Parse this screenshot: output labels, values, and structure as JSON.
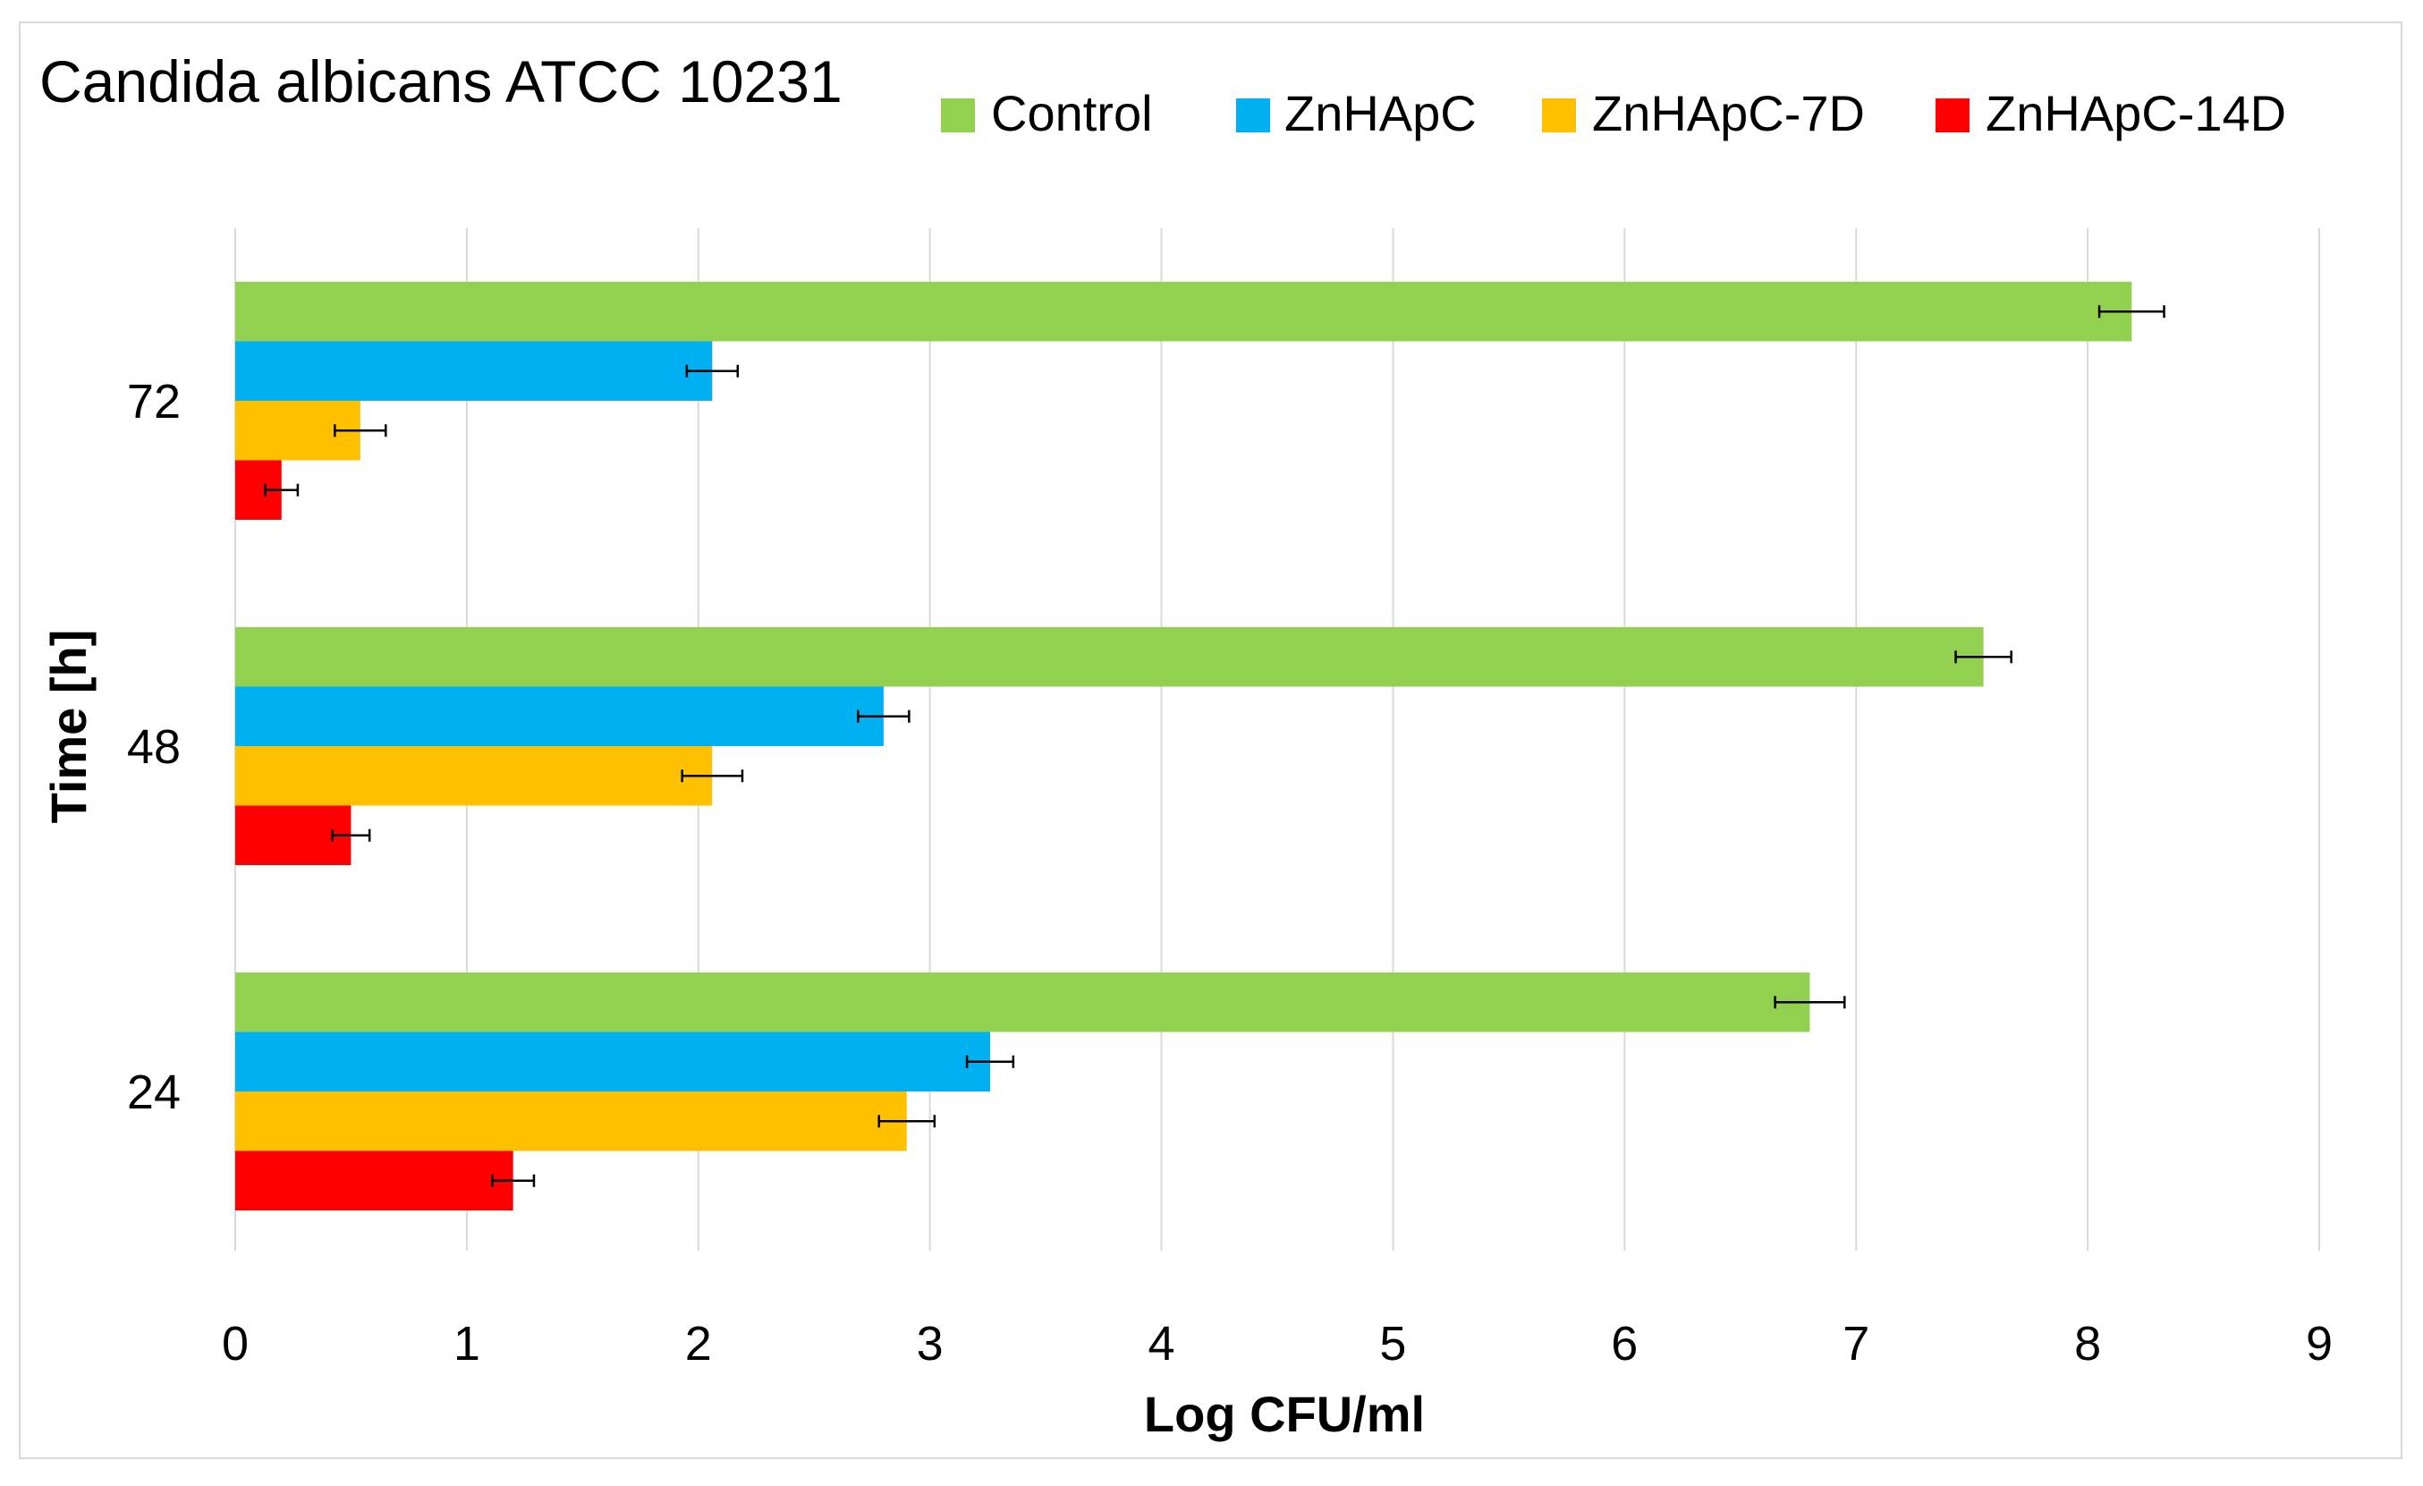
{
  "chart_data": {
    "type": "bar",
    "orientation": "horizontal",
    "title": "Candida albicans ATCC 10231",
    "xlabel": "Log CFU/ml",
    "ylabel": "Time [h]",
    "xlim": [
      0,
      9
    ],
    "x_ticks": [
      "0",
      "1",
      "2",
      "3",
      "4",
      "5",
      "6",
      "7",
      "8",
      "9"
    ],
    "categories": [
      "72",
      "48",
      "24"
    ],
    "grid": true,
    "legend_position": "top",
    "series": [
      {
        "name": "Control",
        "color": "#92d050",
        "values": [
          8.19,
          7.55,
          6.8
        ],
        "errors": [
          0.14,
          0.12,
          0.15
        ]
      },
      {
        "name": "ZnHApC",
        "color": "#00b0f0",
        "values": [
          2.06,
          2.8,
          3.26
        ],
        "errors": [
          0.11,
          0.11,
          0.1
        ]
      },
      {
        "name": "ZnHApC-7D",
        "color": "#ffc000",
        "values": [
          0.54,
          2.06,
          2.9
        ],
        "errors": [
          0.11,
          0.13,
          0.12
        ]
      },
      {
        "name": "ZnHApC-14D",
        "color": "#ff0000",
        "values": [
          0.2,
          0.5,
          1.2
        ],
        "errors": [
          0.07,
          0.08,
          0.09
        ]
      }
    ]
  }
}
